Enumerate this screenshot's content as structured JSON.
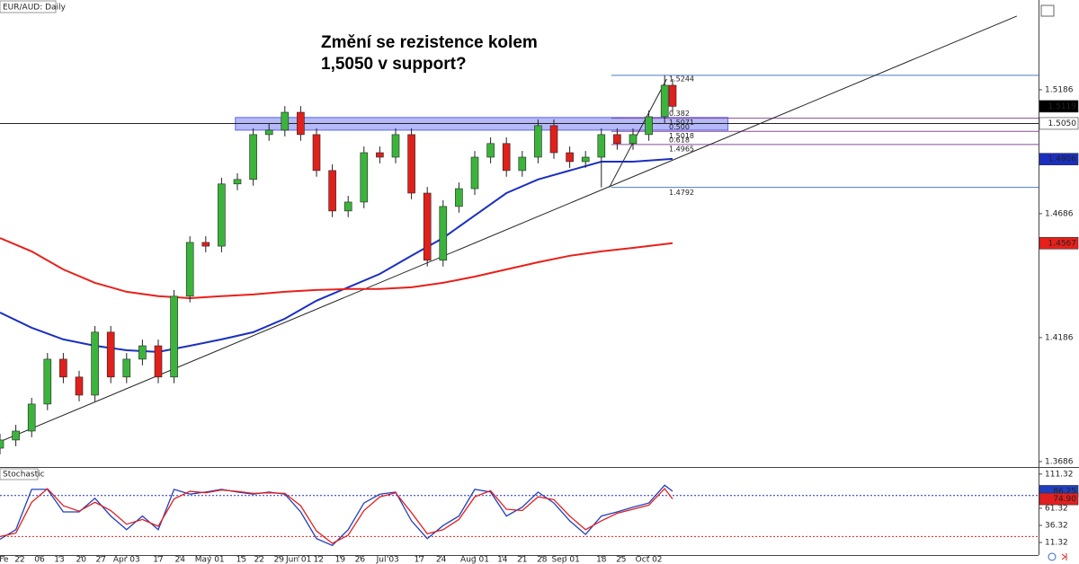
{
  "chart_data": [
    {
      "type": "candlestick",
      "title": "EUR/AUD: Daily",
      "annotation": [
        "Změní se rezistence kolem",
        "1,5050 v support?"
      ],
      "up_color": "#3cb43c",
      "down_color": "#e0201b",
      "x": [
        0,
        4,
        8,
        12,
        16,
        20,
        24,
        28,
        32,
        36,
        40,
        44,
        48,
        52,
        56,
        60,
        64,
        68,
        72,
        76,
        80,
        84,
        88,
        92,
        96,
        100,
        104,
        108,
        112,
        116,
        120,
        124,
        128,
        132,
        136,
        140,
        144,
        148,
        152,
        156,
        160,
        164,
        168,
        170
      ],
      "open": [
        1.374,
        1.3773,
        1.3809,
        1.3918,
        1.4099,
        1.4027,
        1.3954,
        1.4208,
        1.4027,
        1.4099,
        1.4153,
        1.4027,
        1.4353,
        1.457,
        1.4555,
        1.4806,
        1.4824,
        1.5005,
        1.5023,
        1.5095,
        1.5005,
        1.486,
        1.4697,
        1.4733,
        1.4932,
        1.4914,
        1.5005,
        1.4769,
        1.4498,
        1.4715,
        1.4787,
        1.4914,
        1.4969,
        1.486,
        1.4914,
        1.5041,
        1.4932,
        1.4896,
        1.4914,
        1.5005,
        1.4969,
        1.5005,
        1.5077,
        1.5204
      ],
      "high": [
        1.3798,
        1.3834,
        1.3943,
        1.4124,
        1.4124,
        1.4052,
        1.4233,
        1.4233,
        1.4124,
        1.4178,
        1.4178,
        1.4378,
        1.4595,
        1.4595,
        1.4831,
        1.4849,
        1.503,
        1.5048,
        1.512,
        1.512,
        1.503,
        1.4885,
        1.4758,
        1.4957,
        1.4957,
        1.503,
        1.503,
        1.4794,
        1.474,
        1.4812,
        1.4939,
        1.4994,
        1.4994,
        1.4939,
        1.5066,
        1.5066,
        1.4957,
        1.4939,
        1.503,
        1.503,
        1.503,
        1.5102,
        1.5244,
        1.5229
      ],
      "low": [
        1.3715,
        1.3748,
        1.3784,
        1.3893,
        1.4002,
        1.3929,
        1.3929,
        1.4002,
        1.4002,
        1.4074,
        1.4002,
        1.4002,
        1.4328,
        1.453,
        1.453,
        1.4781,
        1.4799,
        1.498,
        1.4998,
        1.498,
        1.4835,
        1.4672,
        1.4672,
        1.4708,
        1.4889,
        1.4889,
        1.4744,
        1.4473,
        1.4473,
        1.469,
        1.4762,
        1.4889,
        1.4835,
        1.4835,
        1.4889,
        1.4907,
        1.4871,
        1.4871,
        1.4792,
        1.4944,
        1.4944,
        1.498,
        1.5052,
        1.5094
      ],
      "close": [
        1.3773,
        1.3809,
        1.3918,
        1.4099,
        1.4027,
        1.3954,
        1.4208,
        1.4027,
        1.4099,
        1.4153,
        1.4027,
        1.4353,
        1.457,
        1.4555,
        1.4806,
        1.4824,
        1.5005,
        1.5023,
        1.5095,
        1.5005,
        1.486,
        1.4697,
        1.4733,
        1.4932,
        1.4914,
        1.5005,
        1.4769,
        1.4498,
        1.4715,
        1.4787,
        1.4914,
        1.4969,
        1.486,
        1.4914,
        1.5041,
        1.4932,
        1.4896,
        1.4914,
        1.5005,
        1.4969,
        1.5005,
        1.5077,
        1.5204,
        1.5119
      ],
      "moving_averages": [
        {
          "color": "#1a2fc0",
          "x": [
            0,
            8,
            16,
            24,
            32,
            40,
            48,
            56,
            64,
            72,
            80,
            88,
            96,
            104,
            112,
            120,
            128,
            136,
            144,
            152,
            160,
            170
          ],
          "values": [
            1.4287,
            1.4226,
            1.4179,
            1.4153,
            1.4135,
            1.4128,
            1.4153,
            1.4179,
            1.4208,
            1.4262,
            1.4335,
            1.4389,
            1.4443,
            1.4516,
            1.4588,
            1.4679,
            1.4769,
            1.4824,
            1.486,
            1.4896,
            1.4896,
            1.4907
          ]
        },
        {
          "color": "#e8201a",
          "x": [
            0,
            8,
            16,
            24,
            32,
            40,
            48,
            56,
            64,
            72,
            80,
            88,
            96,
            104,
            112,
            120,
            128,
            136,
            144,
            152,
            160,
            170
          ],
          "values": [
            1.4588,
            1.4534,
            1.4461,
            1.4407,
            1.4371,
            1.4353,
            1.4345,
            1.4353,
            1.436,
            1.4371,
            1.4378,
            1.4382,
            1.4382,
            1.4389,
            1.4407,
            1.4432,
            1.4461,
            1.449,
            1.4516,
            1.4534,
            1.4548,
            1.4567
          ]
        }
      ],
      "trendlines": [
        {
          "color": "#222222",
          "x": [
            0,
            257
          ],
          "values": [
            1.3766,
            1.5483
          ]
        },
        {
          "color": "#222222",
          "x": [
            154,
            168.5
          ],
          "values": [
            1.4792,
            1.5229
          ]
        }
      ],
      "resistance_zone": {
        "color": "#5a64f0",
        "xlim": [
          59.5,
          184
        ],
        "ylim": [
          1.5023,
          1.5074
        ]
      },
      "level": {
        "value": 1.505,
        "label": "1.5050"
      },
      "fibonacci": {
        "xlim": [
          154.5,
          262.5
        ],
        "levels": [
          {
            "value": 1.5244,
            "label": "1.5244",
            "color": "#4a7cc7"
          },
          {
            "value": 1.5071,
            "ratio": "0.382",
            "label": "1.5071",
            "color": "#8a4a9a"
          },
          {
            "value": 1.5018,
            "ratio": "0.500",
            "label": "1.5018",
            "color": "#8a4a9a"
          },
          {
            "value": 1.4965,
            "ratio": "0.618",
            "label": "1.4965",
            "color": "#8a4a9a"
          },
          {
            "value": 1.4792,
            "label": "1.4792",
            "color": "#4a7cc7"
          }
        ]
      },
      "price_labels": [
        {
          "value": 1.5119,
          "label": "1.5119",
          "color": "#000000",
          "text_color": "#ffffff"
        },
        {
          "value": 1.505,
          "label": "1.5050",
          "color": "#ffffff",
          "text_color": "#000000"
        },
        {
          "value": 1.4906,
          "label": "1.4906",
          "color": "#1a2fc0",
          "text_color": "#ffffff"
        },
        {
          "value": 1.4567,
          "label": "1.4567",
          "color": "#e8201a",
          "text_color": "#ffffff"
        }
      ],
      "xlim": [
        0,
        262.5
      ],
      "ylim": [
        1.3664,
        1.5548
      ],
      "yticks": [
        1.5186,
        1.4686,
        1.4186,
        1.3686
      ],
      "xticks": [
        {
          "value": 1,
          "label": "Fe"
        },
        {
          "value": 5,
          "label": "22"
        },
        {
          "value": 10,
          "label": "06"
        },
        {
          "value": 15,
          "label": "13"
        },
        {
          "value": 20.5,
          "label": "20"
        },
        {
          "value": 25.5,
          "label": "27"
        },
        {
          "value": 32,
          "label": "Apr 03"
        },
        {
          "value": 40,
          "label": "17"
        },
        {
          "value": 45.5,
          "label": "24"
        },
        {
          "value": 53,
          "label": "May 01"
        },
        {
          "value": 61,
          "label": "15"
        },
        {
          "value": 65.5,
          "label": "22"
        },
        {
          "value": 70.5,
          "label": "29"
        },
        {
          "value": 75.5,
          "label": "Jun 01"
        },
        {
          "value": 80.5,
          "label": "12"
        },
        {
          "value": 86,
          "label": "19"
        },
        {
          "value": 91,
          "label": "26"
        },
        {
          "value": 98,
          "label": "Jul 03"
        },
        {
          "value": 106,
          "label": "17"
        },
        {
          "value": 111.5,
          "label": "24"
        },
        {
          "value": 120,
          "label": "Aug 01"
        },
        {
          "value": 127,
          "label": "14"
        },
        {
          "value": 132,
          "label": "21"
        },
        {
          "value": 137,
          "label": "28"
        },
        {
          "value": 143,
          "label": "Sep 01"
        },
        {
          "value": 152,
          "label": "18"
        },
        {
          "value": 157,
          "label": "25"
        },
        {
          "value": 164,
          "label": "Oct 02"
        }
      ]
    },
    {
      "type": "line",
      "title": "Stochastic",
      "x": [
        0,
        4,
        8,
        12,
        16,
        20,
        24,
        28,
        32,
        36,
        40,
        44,
        48,
        52,
        56,
        60,
        64,
        68,
        72,
        76,
        80,
        84,
        88,
        92,
        96,
        100,
        104,
        108,
        112,
        116,
        120,
        124,
        128,
        132,
        136,
        140,
        144,
        148,
        152,
        156,
        160,
        164,
        168,
        170
      ],
      "series": [
        {
          "color": "#1f3fbf",
          "values": [
            16,
            30,
            89,
            89,
            56,
            56,
            76,
            50,
            30,
            50,
            30,
            89,
            82,
            85,
            89,
            85,
            82,
            85,
            82,
            56,
            17,
            7,
            30,
            69,
            82,
            85,
            43,
            17,
            36,
            50,
            89,
            85,
            50,
            63,
            85,
            69,
            43,
            23,
            50,
            56,
            63,
            69,
            95,
            86.25
          ]
        },
        {
          "color": "#e02020",
          "values": [
            20,
            25,
            70,
            90,
            65,
            57,
            70,
            58,
            38,
            45,
            35,
            75,
            86,
            84,
            88,
            86,
            83,
            84,
            83,
            65,
            28,
            10,
            22,
            58,
            78,
            84,
            55,
            24,
            30,
            45,
            78,
            87,
            60,
            58,
            78,
            74,
            50,
            30,
            43,
            54,
            60,
            66,
            90,
            74.9
          ]
        }
      ],
      "levels": [
        {
          "value": 80,
          "color": "#1a2fc0"
        },
        {
          "value": 20,
          "color": "#e02020"
        }
      ],
      "price_labels": [
        {
          "value": 86.25,
          "label": "86.25",
          "color": "#1f3fbf",
          "text_color": "#ffffff"
        },
        {
          "value": 74.9,
          "label": "74.90",
          "color": "#e02020",
          "text_color": "#ffffff"
        }
      ],
      "xlim": [
        0,
        262.5
      ],
      "ylim": [
        -7,
        119
      ],
      "yticks": [
        111.32,
        61.32,
        36.32,
        11.32
      ]
    }
  ]
}
